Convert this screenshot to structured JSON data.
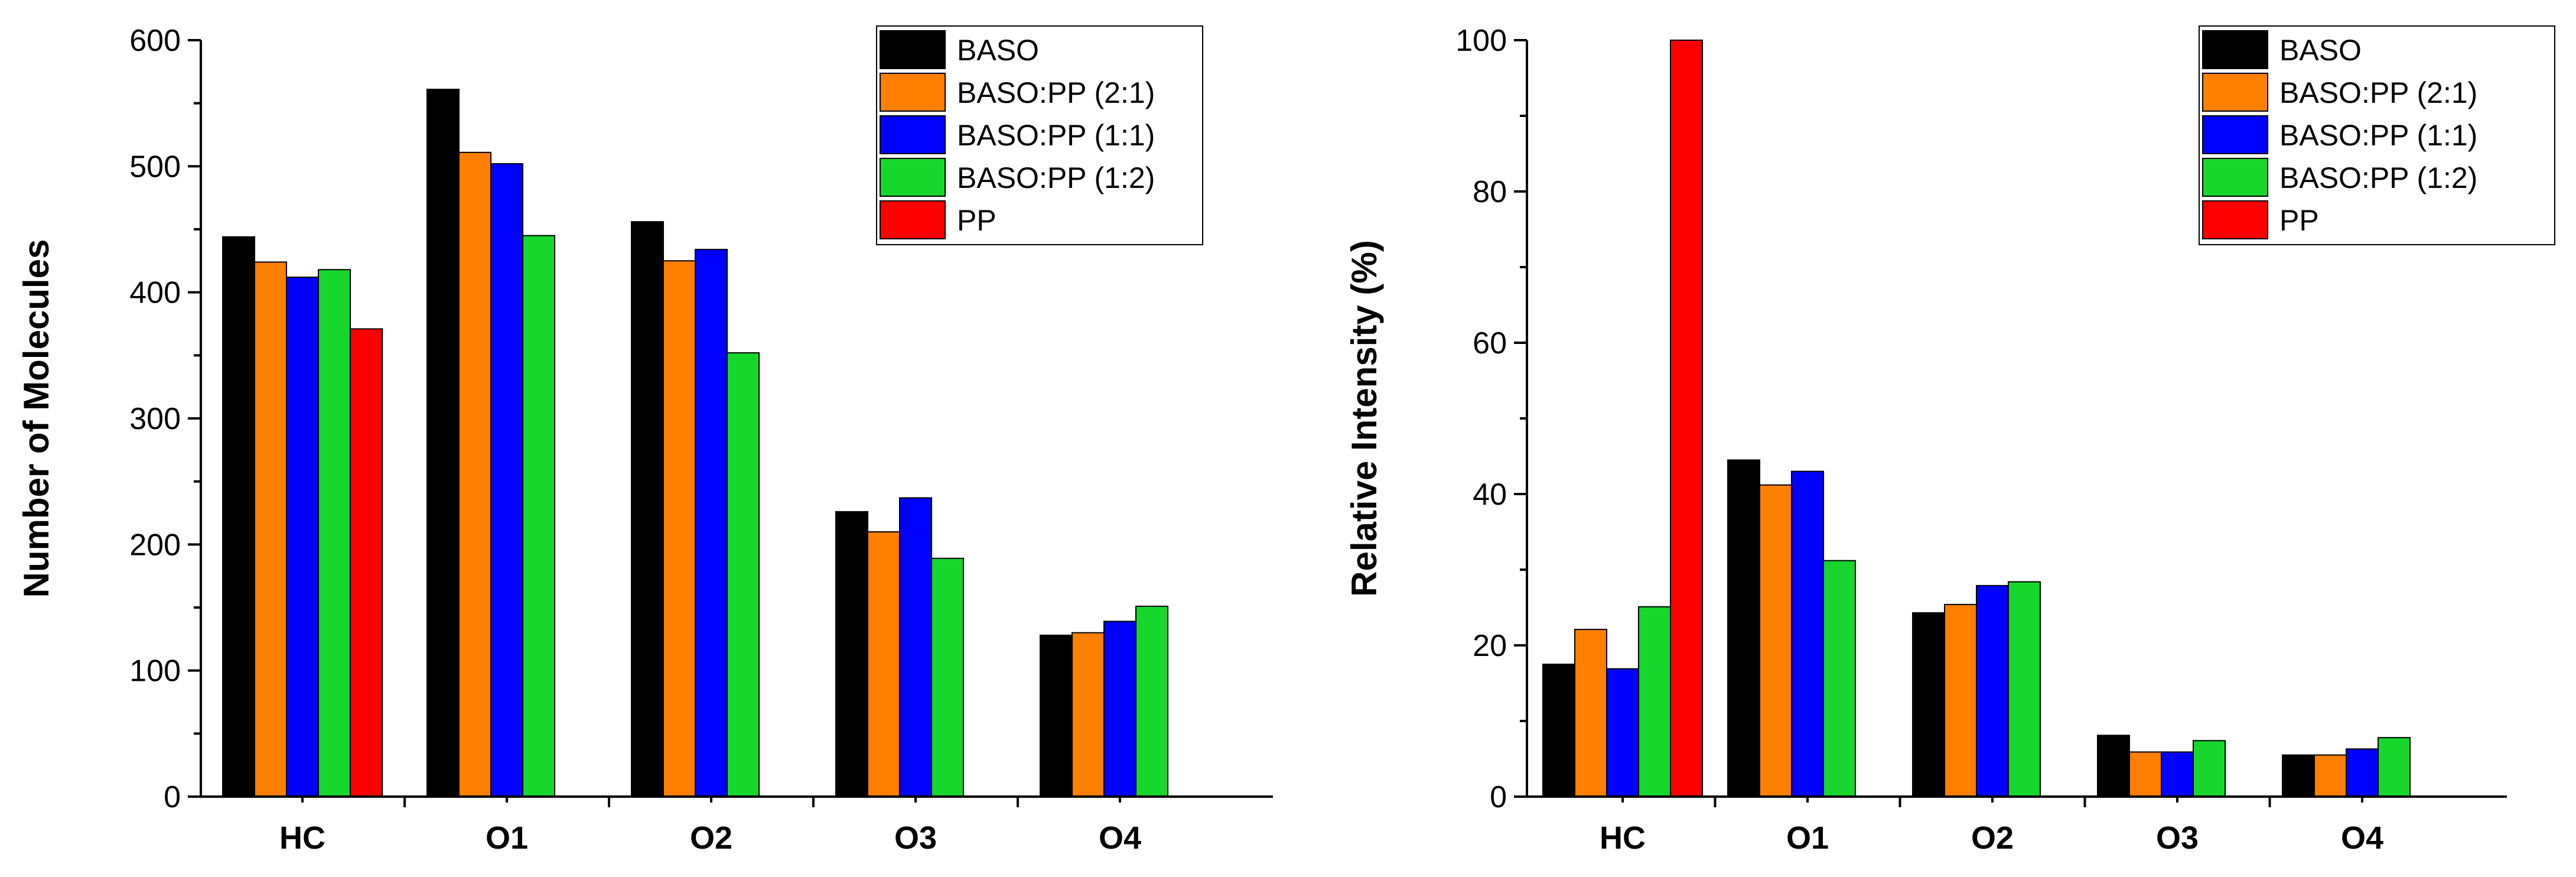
{
  "colors": {
    "BASO": "#000000",
    "BASO:PP (2:1)": "#ff7f00",
    "BASO:PP (1:1)": "#0000ff",
    "BASO:PP (1:2)": "#17d62c",
    "PP": "#ff0000"
  },
  "chart_data": [
    {
      "type": "bar",
      "categories": [
        "HC",
        "O1",
        "O2",
        "O3",
        "O4"
      ],
      "ylabel": "Number of Molecules",
      "ylim": [
        0,
        600
      ],
      "yticks": [
        0,
        100,
        200,
        300,
        400,
        500,
        600
      ],
      "legend_position": "top-right",
      "series": [
        {
          "name": "BASO",
          "values": [
            444,
            561,
            456,
            226,
            128
          ]
        },
        {
          "name": "BASO:PP (2:1)",
          "values": [
            424,
            511,
            425,
            210,
            130
          ]
        },
        {
          "name": "BASO:PP (1:1)",
          "values": [
            412,
            502,
            434,
            237,
            139
          ]
        },
        {
          "name": "BASO:PP (1:2)",
          "values": [
            418,
            445,
            352,
            189,
            151
          ]
        },
        {
          "name": "PP",
          "values": [
            371,
            null,
            null,
            null,
            null
          ]
        }
      ]
    },
    {
      "type": "bar",
      "categories": [
        "HC",
        "O1",
        "O2",
        "O3",
        "O4"
      ],
      "ylabel": "Relative Intensity (%)",
      "ylim": [
        0,
        100
      ],
      "yticks": [
        0,
        20,
        40,
        60,
        80,
        100
      ],
      "legend_position": "top-right",
      "series": [
        {
          "name": "BASO",
          "values": [
            17.5,
            44.5,
            24.3,
            8.1,
            5.5
          ]
        },
        {
          "name": "BASO:PP (2:1)",
          "values": [
            22.1,
            41.2,
            25.4,
            5.9,
            5.5
          ]
        },
        {
          "name": "BASO:PP (1:1)",
          "values": [
            16.9,
            43.0,
            27.9,
            5.9,
            6.3
          ]
        },
        {
          "name": "BASO:PP (1:2)",
          "values": [
            25.1,
            31.2,
            28.4,
            7.4,
            7.8
          ]
        },
        {
          "name": "PP",
          "values": [
            100,
            null,
            null,
            null,
            null
          ]
        }
      ]
    }
  ]
}
